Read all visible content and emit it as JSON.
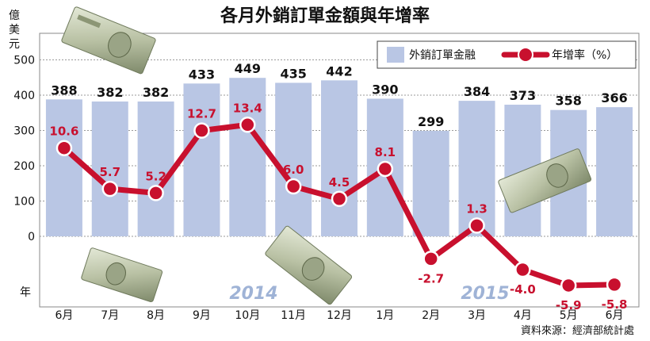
{
  "chart_data": {
    "type": "bar",
    "title": "各月外銷訂單金額與年增率",
    "y_unit": "億美元",
    "x_unit_label": "年",
    "categories": [
      "6月",
      "7月",
      "8月",
      "9月",
      "10月",
      "11月",
      "12月",
      "1月",
      "2月",
      "3月",
      "4月",
      "5月",
      "6月"
    ],
    "series": [
      {
        "name": "外銷訂單金融",
        "type": "bar",
        "values": [
          388,
          382,
          382,
          433,
          449,
          435,
          442,
          390,
          299,
          384,
          373,
          358,
          366
        ],
        "labels": [
          "388",
          "382",
          "382",
          "433",
          "449",
          "435",
          "442",
          "390",
          "299",
          "384",
          "373",
          "358",
          "366"
        ]
      },
      {
        "name": "年增率（%）",
        "type": "line",
        "values": [
          10.6,
          5.7,
          5.2,
          12.7,
          13.4,
          6.0,
          4.5,
          8.1,
          -2.7,
          1.3,
          -4.0,
          -5.9,
          -5.8
        ],
        "labels": [
          "10.6",
          "5.7",
          "5.2",
          "12.7",
          "13.4",
          "6.0",
          "4.5",
          "8.1",
          "-2.7",
          "1.3",
          "-4.0",
          "-5.9",
          "-5.8"
        ]
      }
    ],
    "y_ticks": [
      "0",
      "100",
      "200",
      "300",
      "400",
      "500"
    ],
    "y_tick_values": [
      0,
      100,
      200,
      300,
      400,
      500
    ],
    "year_labels": [
      "2014",
      "2015"
    ],
    "source": "資料來源：經濟部統計處",
    "legend_position": "top-right",
    "colors": {
      "bar": "#b9c6e4",
      "line": "#c8102e",
      "year_text": "#9fb3d6",
      "grid": "#999999"
    }
  }
}
